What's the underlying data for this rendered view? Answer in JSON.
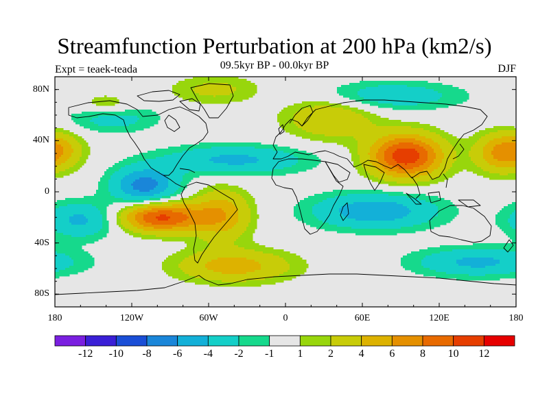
{
  "title": "Streamfunction Perturbation at 200 hPa (km2/s)",
  "subtitle": "09.5kyr BP - 00.0kyr BP",
  "experiment": "Expt = teaek-teada",
  "season": "DJF",
  "map": {
    "projection": "cylindrical-equidistant",
    "lon_range": [
      -180,
      180
    ],
    "lat_range": [
      -90,
      90
    ],
    "background_color": "#e6e6e6",
    "coastline_color": "#000000",
    "lat_ticks": [
      {
        "value": 80,
        "label": "80N"
      },
      {
        "value": 40,
        "label": "40N"
      },
      {
        "value": 0,
        "label": "0"
      },
      {
        "value": -40,
        "label": "40S"
      },
      {
        "value": -80,
        "label": "80S"
      }
    ],
    "lon_ticks": [
      {
        "value": -180,
        "label": "180"
      },
      {
        "value": -120,
        "label": "120W"
      },
      {
        "value": -60,
        "label": "60W"
      },
      {
        "value": 0,
        "label": "0"
      },
      {
        "value": 60,
        "label": "60E"
      },
      {
        "value": 120,
        "label": "120E"
      },
      {
        "value": 180,
        "label": "180"
      }
    ]
  },
  "colorbar": {
    "colors": [
      "#7a1fe0",
      "#3a1fd6",
      "#1a4ed6",
      "#1a86d9",
      "#13b0d8",
      "#14cfc8",
      "#16d98c",
      "#e6e6e6",
      "#98d60c",
      "#c8cc08",
      "#ddb200",
      "#e59000",
      "#e86a00",
      "#e63e00",
      "#e60000"
    ],
    "labels": [
      {
        "boundary": 1,
        "text": "-12"
      },
      {
        "boundary": 2,
        "text": "-10"
      },
      {
        "boundary": 3,
        "text": "-8"
      },
      {
        "boundary": 4,
        "text": "-6"
      },
      {
        "boundary": 5,
        "text": "-4"
      },
      {
        "boundary": 6,
        "text": "-2"
      },
      {
        "boundary": 7,
        "text": "-1"
      },
      {
        "boundary": 8,
        "text": "1"
      },
      {
        "boundary": 9,
        "text": "2"
      },
      {
        "boundary": 10,
        "text": "4"
      },
      {
        "boundary": 11,
        "text": "6"
      },
      {
        "boundary": 12,
        "text": "8"
      },
      {
        "boundary": 13,
        "text": "10"
      },
      {
        "boundary": 14,
        "text": "12"
      }
    ]
  },
  "chart_data": {
    "type": "heatmap",
    "title": "Streamfunction Perturbation at 200 hPa (km2/s)",
    "subtitle": "09.5kyr BP - 00.0kyr BP",
    "units": "km2/s",
    "contour_levels": [
      -12,
      -10,
      -8,
      -6,
      -4,
      -2,
      -1,
      1,
      2,
      4,
      6,
      8,
      10,
      12
    ],
    "features": [
      {
        "name": "high-tibet",
        "lon": 94,
        "lat": 28,
        "peak": 11.5,
        "sigma_lon": 20,
        "sigma_lat": 12
      },
      {
        "name": "high-s-pacific",
        "lon": -97,
        "lat": -20,
        "peak": 10.5,
        "sigma_lon": 22,
        "sigma_lat": 8
      },
      {
        "name": "high-s-atlantic",
        "lon": -40,
        "lat": -58,
        "peak": 5,
        "sigma_lon": 32,
        "sigma_lat": 9
      },
      {
        "name": "high-n-pacific-east",
        "lon": -178,
        "lat": 32,
        "peak": 5,
        "sigma_lon": 14,
        "sigma_lat": 10
      },
      {
        "name": "high-n-pacific-west",
        "lon": 165,
        "lat": 30,
        "peak": 4.5,
        "sigma_lon": 14,
        "sigma_lat": 11
      },
      {
        "name": "high-europe",
        "lon": 35,
        "lat": 58,
        "peak": 4,
        "sigma_lon": 25,
        "sigma_lat": 12
      },
      {
        "name": "high-brazil",
        "lon": -50,
        "lat": -18,
        "peak": 5.5,
        "sigma_lon": 16,
        "sigma_lat": 14
      },
      {
        "name": "high-greenland",
        "lon": -55,
        "lat": 80,
        "peak": 2.5,
        "sigma_lon": 25,
        "sigma_lat": 8
      },
      {
        "name": "high-alaska",
        "lon": -140,
        "lat": 68,
        "peak": 2.5,
        "sigma_lon": 15,
        "sigma_lat": 6
      },
      {
        "name": "low-atlantic-band",
        "lon": -40,
        "lat": 25,
        "peak": -4.5,
        "sigma_lon": 40,
        "sigma_lat": 8
      },
      {
        "name": "low-caribbean",
        "lon": -110,
        "lat": 5,
        "peak": -7,
        "sigma_lon": 18,
        "sigma_lat": 10
      },
      {
        "name": "low-indian-ocean",
        "lon": 70,
        "lat": -15,
        "peak": -5.5,
        "sigma_lon": 35,
        "sigma_lat": 10
      },
      {
        "name": "low-s-pacific",
        "lon": -160,
        "lat": -22,
        "peak": -4.5,
        "sigma_lon": 20,
        "sigma_lat": 10
      },
      {
        "name": "low-southern-ocean",
        "lon": 150,
        "lat": -55,
        "peak": -4.5,
        "sigma_lon": 35,
        "sigma_lat": 8
      },
      {
        "name": "low-arctic",
        "lon": 80,
        "lat": 75,
        "peak": -3.5,
        "sigma_lon": 40,
        "sigma_lat": 8
      },
      {
        "name": "low-north-pacific",
        "lon": -135,
        "lat": 58,
        "peak": -3,
        "sigma_lon": 25,
        "sigma_lat": 8
      }
    ]
  }
}
